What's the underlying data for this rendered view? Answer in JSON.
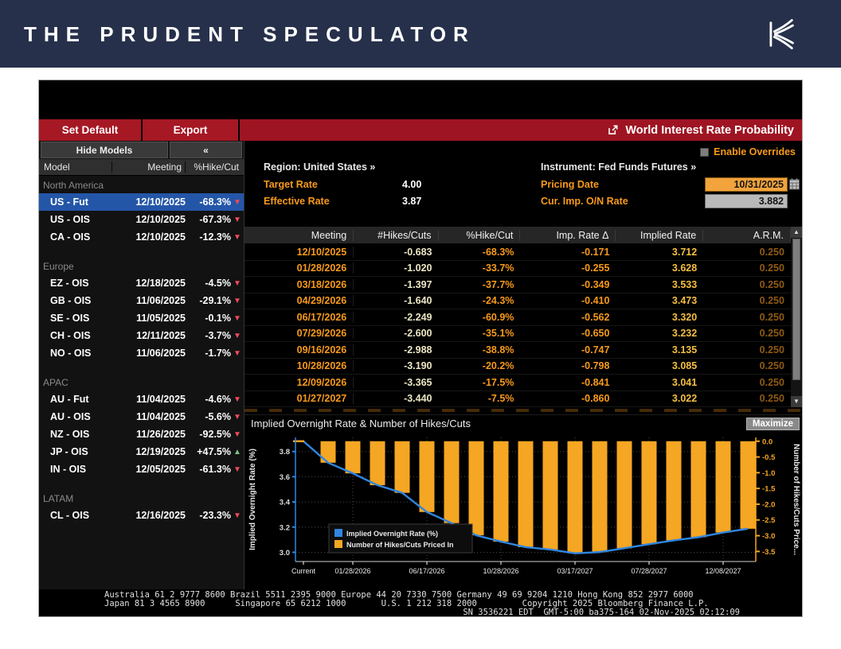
{
  "header": {
    "title": "THE PRUDENT SPECULATOR"
  },
  "toolbar": {
    "set_default": "Set Default",
    "export": "Export",
    "window_title": "World Interest Rate Probability"
  },
  "sidebar": {
    "hide_models": "Hide Models",
    "collapse_glyph": "«",
    "columns": [
      "Model",
      "Meeting",
      "%Hike/Cut"
    ],
    "groups": [
      {
        "label": "North America",
        "rows": [
          {
            "model": "US - Fut",
            "meeting": "12/10/2025",
            "pct": "-68.3%",
            "dir": "down",
            "selected": true
          },
          {
            "model": "US - OIS",
            "meeting": "12/10/2025",
            "pct": "-67.3%",
            "dir": "down"
          },
          {
            "model": "CA - OIS",
            "meeting": "12/10/2025",
            "pct": "-12.3%",
            "dir": "down"
          }
        ]
      },
      {
        "label": "Europe",
        "rows": [
          {
            "model": "EZ - OIS",
            "meeting": "12/18/2025",
            "pct": "-4.5%",
            "dir": "down"
          },
          {
            "model": "GB - OIS",
            "meeting": "11/06/2025",
            "pct": "-29.1%",
            "dir": "down"
          },
          {
            "model": "SE - OIS",
            "meeting": "11/05/2025",
            "pct": "-0.1%",
            "dir": "down"
          },
          {
            "model": "CH - OIS",
            "meeting": "12/11/2025",
            "pct": "-3.7%",
            "dir": "down"
          },
          {
            "model": "NO - OIS",
            "meeting": "11/06/2025",
            "pct": "-1.7%",
            "dir": "down"
          }
        ]
      },
      {
        "label": "APAC",
        "rows": [
          {
            "model": "AU - Fut",
            "meeting": "11/04/2025",
            "pct": "-4.6%",
            "dir": "down"
          },
          {
            "model": "AU - OIS",
            "meeting": "11/04/2025",
            "pct": "-5.6%",
            "dir": "down"
          },
          {
            "model": "NZ - OIS",
            "meeting": "11/26/2025",
            "pct": "-92.5%",
            "dir": "down"
          },
          {
            "model": "JP - OIS",
            "meeting": "12/19/2025",
            "pct": "+47.5%",
            "dir": "up"
          },
          {
            "model": "IN - OIS",
            "meeting": "12/05/2025",
            "pct": "-61.3%",
            "dir": "down"
          }
        ]
      },
      {
        "label": "LATAM",
        "rows": [
          {
            "model": "CL - OIS",
            "meeting": "12/16/2025",
            "pct": "-23.3%",
            "dir": "down"
          }
        ]
      }
    ]
  },
  "overrides": {
    "label": "Enable Overrides",
    "checked": false
  },
  "info": {
    "region_label": "Region:",
    "region_value": "United States »",
    "instrument_label": "Instrument:",
    "instrument_value": "Fed Funds Futures »",
    "target_rate_label": "Target Rate",
    "target_rate": "4.00",
    "effective_rate_label": "Effective Rate",
    "effective_rate": "3.87",
    "pricing_date_label": "Pricing Date",
    "pricing_date": "10/31/2025",
    "cur_imp_label": "Cur. Imp. O/N Rate",
    "cur_imp": "3.882"
  },
  "table": {
    "columns": [
      "Meeting",
      "#Hikes/Cuts",
      "%Hike/Cut",
      "Imp. Rate Δ",
      "Implied Rate",
      "A.R.M."
    ],
    "rows": [
      [
        "12/10/2025",
        "-0.683",
        "-68.3%",
        "-0.171",
        "3.712",
        "0.250"
      ],
      [
        "01/28/2026",
        "-1.020",
        "-33.7%",
        "-0.255",
        "3.628",
        "0.250"
      ],
      [
        "03/18/2026",
        "-1.397",
        "-37.7%",
        "-0.349",
        "3.533",
        "0.250"
      ],
      [
        "04/29/2026",
        "-1.640",
        "-24.3%",
        "-0.410",
        "3.473",
        "0.250"
      ],
      [
        "06/17/2026",
        "-2.249",
        "-60.9%",
        "-0.562",
        "3.320",
        "0.250"
      ],
      [
        "07/29/2026",
        "-2.600",
        "-35.1%",
        "-0.650",
        "3.232",
        "0.250"
      ],
      [
        "09/16/2026",
        "-2.988",
        "-38.8%",
        "-0.747",
        "3.135",
        "0.250"
      ],
      [
        "10/28/2026",
        "-3.190",
        "-20.2%",
        "-0.798",
        "3.085",
        "0.250"
      ],
      [
        "12/09/2026",
        "-3.365",
        "-17.5%",
        "-0.841",
        "3.041",
        "0.250"
      ],
      [
        "01/27/2027",
        "-3.440",
        "-7.5%",
        "-0.860",
        "3.022",
        "0.250"
      ]
    ]
  },
  "chart": {
    "title": "Implied Overnight Rate & Number of Hikes/Cuts",
    "maximize_label": "Maximize"
  },
  "chart_data": {
    "type": "bar+line",
    "title": "Implied Overnight Rate & Number of Hikes/Cuts",
    "legend": [
      "Implied Overnight Rate (%)",
      "Number of Hikes/Cuts Priced In"
    ],
    "x_ticks": [
      "Current",
      "01/28/2026",
      "06/17/2026",
      "10/28/2026",
      "03/17/2027",
      "07/28/2027",
      "12/08/2027"
    ],
    "x_tick_positions": [
      0,
      2,
      5,
      8,
      11,
      14,
      17
    ],
    "left_axis": {
      "label": "Implied Overnight Rate (%)",
      "ticks": [
        3.0,
        3.2,
        3.4,
        3.6,
        3.8
      ]
    },
    "right_axis": {
      "label": "Number of Hikes/Cuts Price...",
      "ticks": [
        0.0,
        -0.5,
        -1.0,
        -1.5,
        -2.0,
        -2.5,
        -3.0,
        -3.5
      ]
    },
    "series": [
      {
        "name": "Implied Overnight Rate (%)",
        "type": "line",
        "color": "#2f86e0",
        "values": [
          3.882,
          3.711,
          3.627,
          3.533,
          3.472,
          3.32,
          3.232,
          3.135,
          3.085,
          3.041,
          3.022,
          2.992,
          3.002,
          3.032,
          3.065,
          3.095,
          3.12,
          3.157,
          3.187
        ]
      },
      {
        "name": "Number of Hikes/Cuts Priced In",
        "type": "bar",
        "color": "#f5a623",
        "values": [
          -0.683,
          -1.02,
          -1.397,
          -1.64,
          -2.249,
          -2.6,
          -2.988,
          -3.19,
          -3.365,
          -3.44,
          -3.56,
          -3.52,
          -3.4,
          -3.27,
          -3.15,
          -3.05,
          -2.9,
          -2.78
        ]
      }
    ]
  },
  "footer": {
    "line1": "Australia 61 2 9777 8600 Brazil 5511 2395 9000 Europe 44 20 7330 7500 Germany 49 69 9204 1210 Hong Kong 852 2977 6000",
    "line2": "Japan 81 3 4565 8900      Singapore 65 6212 1000       U.S. 1 212 318 2000         Copyright 2025 Bloomberg Finance L.P.",
    "line3": "SN 3536221 EDT  GMT-5:00 ba375-164 02-Nov-2025 02:12:09"
  },
  "colors": {
    "header_navy": "#26304a",
    "toolbar_red": "#9e1422",
    "accent_orange": "#f89a1c",
    "bar_orange": "#f5a623",
    "line_blue": "#2f86e0",
    "selected_blue": "#2456a8",
    "down_red": "#f2495c",
    "up_green": "#7cc47f"
  }
}
